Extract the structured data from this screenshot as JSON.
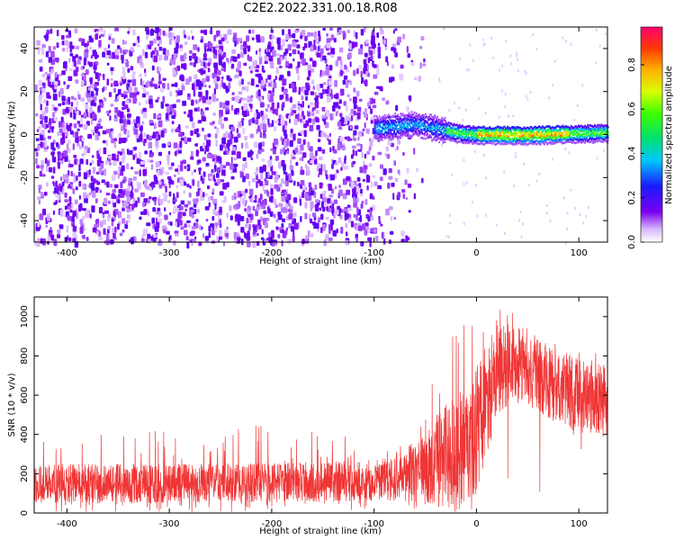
{
  "title": "C2E2.2022.331.00.18.R08",
  "chart_data": [
    {
      "type": "heatmap",
      "xlabel": "Height of straight line (km)",
      "ylabel": "Frequency (Hz)",
      "xlim": [
        -432,
        128
      ],
      "ylim": [
        -50,
        50
      ],
      "xticks": [
        -400,
        -300,
        -200,
        -100,
        0,
        100
      ],
      "yticks": [
        -40,
        -20,
        0,
        20,
        40
      ],
      "colorbar": {
        "label": "Normalized spectral amplitude",
        "range": [
          0.0,
          0.97
        ],
        "ticks": [
          "0.0",
          "0.2",
          "0.4",
          "0.6",
          "0.8"
        ]
      },
      "features": {
        "noise_region_x": [
          -432,
          -100
        ],
        "fade_region_x": [
          -100,
          -40
        ],
        "signal_band_x": [
          -100,
          128
        ],
        "signal_band_freq_center": [
          3,
          5,
          3,
          1,
          0,
          0,
          1
        ],
        "signal_band_x_points": [
          -100,
          -60,
          -40,
          -20,
          0,
          60,
          128
        ],
        "signal_peak_amplitude": 0.97
      }
    },
    {
      "type": "line",
      "xlabel": "Height of straight line (km)",
      "ylabel": "SNR (10 * v/v)",
      "xlim": [
        -432,
        128
      ],
      "ylim": [
        0,
        1100
      ],
      "xticks": [
        -400,
        -300,
        -200,
        -100,
        0,
        100
      ],
      "yticks": [
        0,
        200,
        400,
        600,
        800,
        1000
      ],
      "series": [
        {
          "color": "#f03535",
          "envelope": {
            "x": [
              -432,
              -300,
              -200,
              -100,
              -70,
              -50,
              -30,
              -10,
              0,
              10,
              20,
              40,
              60,
              80,
              100,
              128
            ],
            "upper": [
              250,
              250,
              255,
              270,
              320,
              420,
              560,
              650,
              750,
              900,
              980,
              950,
              880,
              820,
              780,
              760
            ],
            "lower": [
              50,
              50,
              55,
              60,
              60,
              40,
              30,
              30,
              100,
              300,
              500,
              560,
              520,
              440,
              400,
              380
            ],
            "spike_max": [
              400,
              420,
              460,
              420,
              500,
              650,
              850,
              1000,
              1050,
              1080,
              1090,
              1000,
              900,
              870,
              830,
              820
            ]
          }
        }
      ]
    }
  ]
}
